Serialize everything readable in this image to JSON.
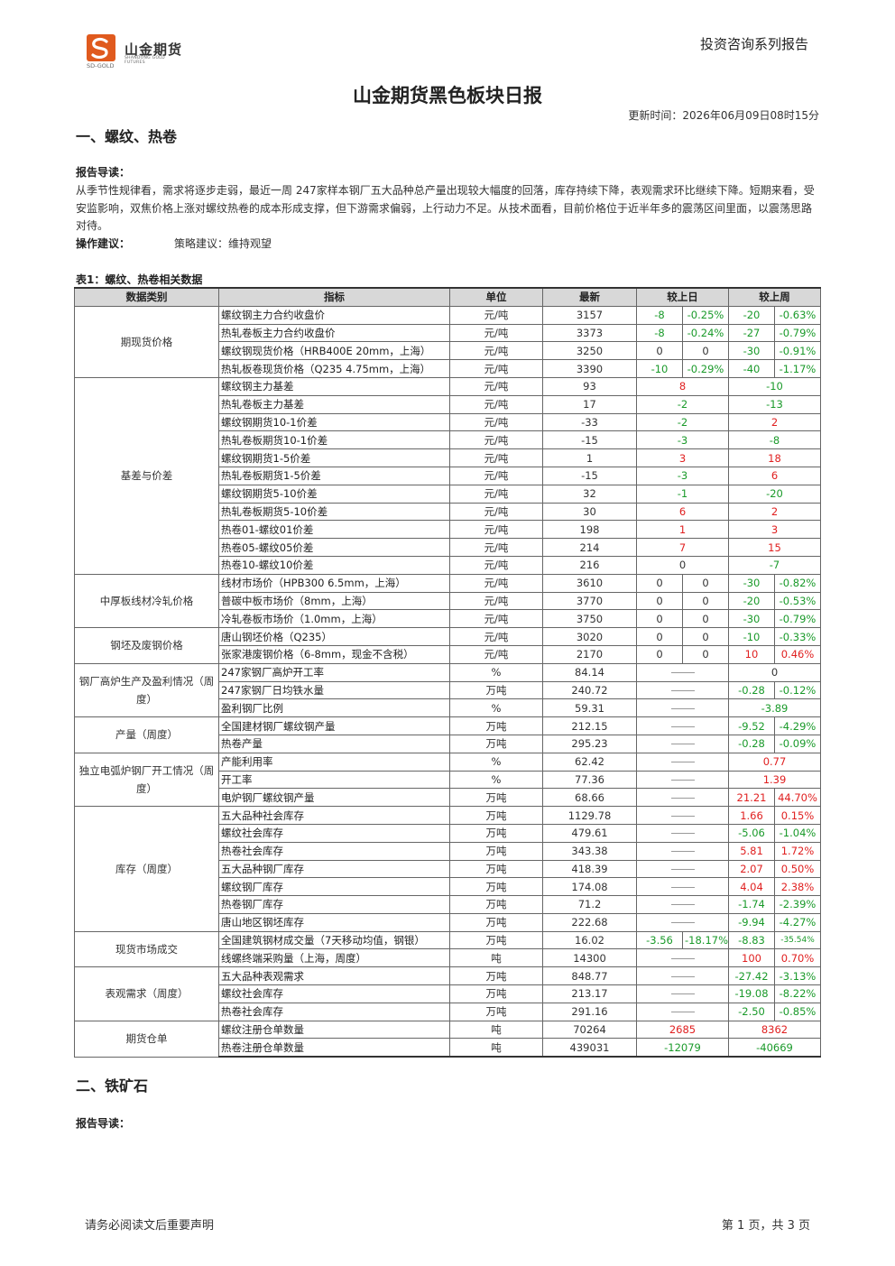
{
  "logo": {
    "name_cn": "山金期货",
    "name_en": "SHANDONG GOLD FUTURES",
    "abbr": "SD-GOLD",
    "brand_color": "#e05a1e"
  },
  "header": {
    "series": "投资咨询系列报告"
  },
  "title": "山金期货黑色板块日报",
  "update_time": "更新时间：2026年06月09日08时15分",
  "section1": {
    "title": "一、螺纹、热卷",
    "intro_label": "报告导读：",
    "intro": "从季节性规律看，需求将逐步走弱，最近一周 247家样本钢厂五大品种总产量出现较大幅度的回落，库存持续下降，表观需求环比继续下降。短期来看，受安监影响，双焦价格上涨对螺纹热卷的成本形成支撑，但下游需求偏弱，上行动力不足。从技术面看，目前价格位于近半年多的震荡区间里面，以震荡思路对待。",
    "advice_label": "操作建议：",
    "advice": "策略建议：维持观望",
    "table_caption": "表1：螺纹、热卷相关数据",
    "headers": [
      "数据类别",
      "指标",
      "单位",
      "最新",
      "较上日",
      "较上周"
    ],
    "groups": [
      {
        "category": "期现货价格",
        "rows": [
          {
            "name": "螺纹钢主力合约收盘价",
            "unit": "元/吨",
            "latest": "3157",
            "d1": "-8",
            "d1c": "green",
            "d2": "-0.25%",
            "d2c": "green",
            "w1": "-20",
            "w1c": "green",
            "w2": "-0.63%",
            "w2c": "green"
          },
          {
            "name": "热轧卷板主力合约收盘价",
            "unit": "元/吨",
            "latest": "3373",
            "d1": "-8",
            "d1c": "green",
            "d2": "-0.24%",
            "d2c": "green",
            "w1": "-27",
            "w1c": "green",
            "w2": "-0.79%",
            "w2c": "green"
          },
          {
            "name": "螺纹钢现货价格（HRB400E 20mm，上海）",
            "unit": "元/吨",
            "latest": "3250",
            "d1": "0",
            "d1c": "",
            "d2": "0",
            "d2c": "",
            "w1": "-30",
            "w1c": "green",
            "w2": "-0.91%",
            "w2c": "green"
          },
          {
            "name": "热轧板卷现货价格（Q235 4.75mm，上海）",
            "unit": "元/吨",
            "latest": "3390",
            "d1": "-10",
            "d1c": "green",
            "d2": "-0.29%",
            "d2c": "green",
            "w1": "-40",
            "w1c": "green",
            "w2": "-1.17%",
            "w2c": "green"
          }
        ]
      },
      {
        "category": "基差与价差",
        "rows": [
          {
            "name": "螺纹钢主力基差",
            "unit": "元/吨",
            "latest": "93",
            "dm": "8",
            "dmc": "red",
            "wm": "-10",
            "wmc": "green"
          },
          {
            "name": "热轧卷板主力基差",
            "unit": "元/吨",
            "latest": "17",
            "dm": "-2",
            "dmc": "green",
            "wm": "-13",
            "wmc": "green"
          },
          {
            "name": "螺纹钢期货10-1价差",
            "unit": "元/吨",
            "latest": "-33",
            "dm": "-2",
            "dmc": "green",
            "wm": "2",
            "wmc": "red"
          },
          {
            "name": "热轧卷板期货10-1价差",
            "unit": "元/吨",
            "latest": "-15",
            "dm": "-3",
            "dmc": "green",
            "wm": "-8",
            "wmc": "green"
          },
          {
            "name": "螺纹钢期货1-5价差",
            "unit": "元/吨",
            "latest": "1",
            "dm": "3",
            "dmc": "red",
            "wm": "18",
            "wmc": "red"
          },
          {
            "name": "热轧卷板期货1-5价差",
            "unit": "元/吨",
            "latest": "-15",
            "dm": "-3",
            "dmc": "green",
            "wm": "6",
            "wmc": "red"
          },
          {
            "name": "螺纹钢期货5-10价差",
            "unit": "元/吨",
            "latest": "32",
            "dm": "-1",
            "dmc": "green",
            "wm": "-20",
            "wmc": "green"
          },
          {
            "name": "热轧卷板期货5-10价差",
            "unit": "元/吨",
            "latest": "30",
            "dm": "6",
            "dmc": "red",
            "wm": "2",
            "wmc": "red"
          },
          {
            "name": "热卷01-螺纹01价差",
            "unit": "元/吨",
            "latest": "198",
            "dm": "1",
            "dmc": "red",
            "wm": "3",
            "wmc": "red"
          },
          {
            "name": "热卷05-螺纹05价差",
            "unit": "元/吨",
            "latest": "214",
            "dm": "7",
            "dmc": "red",
            "wm": "15",
            "wmc": "red"
          },
          {
            "name": "热卷10-螺纹10价差",
            "unit": "元/吨",
            "latest": "216",
            "dm": "0",
            "dmc": "",
            "wm": "-7",
            "wmc": "green"
          }
        ]
      },
      {
        "category": "中厚板线材冷轧价格",
        "rows": [
          {
            "name": "线材市场价（HPB300 6.5mm，上海）",
            "unit": "元/吨",
            "latest": "3610",
            "d1": "0",
            "d1c": "",
            "d2": "0",
            "d2c": "",
            "w1": "-30",
            "w1c": "green",
            "w2": "-0.82%",
            "w2c": "green"
          },
          {
            "name": "普碳中板市场价（8mm，上海）",
            "unit": "元/吨",
            "latest": "3770",
            "d1": "0",
            "d1c": "",
            "d2": "0",
            "d2c": "",
            "w1": "-20",
            "w1c": "green",
            "w2": "-0.53%",
            "w2c": "green"
          },
          {
            "name": "冷轧卷板市场价（1.0mm，上海）",
            "unit": "元/吨",
            "latest": "3750",
            "d1": "0",
            "d1c": "",
            "d2": "0",
            "d2c": "",
            "w1": "-30",
            "w1c": "green",
            "w2": "-0.79%",
            "w2c": "green"
          }
        ]
      },
      {
        "category": "钢坯及废钢价格",
        "rows": [
          {
            "name": "唐山钢坯价格（Q235）",
            "unit": "元/吨",
            "latest": "3020",
            "d1": "0",
            "d1c": "",
            "d2": "0",
            "d2c": "",
            "w1": "-10",
            "w1c": "green",
            "w2": "-0.33%",
            "w2c": "green"
          },
          {
            "name": "张家港废钢价格（6-8mm，现金不含税）",
            "unit": "元/吨",
            "latest": "2170",
            "d1": "0",
            "d1c": "",
            "d2": "0",
            "d2c": "",
            "w1": "10",
            "w1c": "red",
            "w2": "0.46%",
            "w2c": "red"
          }
        ]
      },
      {
        "category": "钢厂高炉生产及盈利情况（周度）",
        "rows": [
          {
            "name": "247家钢厂高炉开工率",
            "unit": "%",
            "latest": "84.14",
            "dash": true,
            "wm": "0",
            "wmc": ""
          },
          {
            "name": "247家钢厂日均铁水量",
            "unit": "万吨",
            "latest": "240.72",
            "dash": true,
            "w1": "-0.28",
            "w1c": "green",
            "w2": "-0.12%",
            "w2c": "green"
          },
          {
            "name": "盈利钢厂比例",
            "unit": "%",
            "latest": "59.31",
            "dash": true,
            "wm": "-3.89",
            "wmc": "green"
          }
        ]
      },
      {
        "category": "产量（周度）",
        "rows": [
          {
            "name": "全国建材钢厂螺纹钢产量",
            "unit": "万吨",
            "latest": "212.15",
            "dash": true,
            "w1": "-9.52",
            "w1c": "green",
            "w2": "-4.29%",
            "w2c": "green"
          },
          {
            "name": "热卷产量",
            "unit": "万吨",
            "latest": "295.23",
            "dash": true,
            "w1": "-0.28",
            "w1c": "green",
            "w2": "-0.09%",
            "w2c": "green"
          }
        ]
      },
      {
        "category": "独立电弧炉钢厂开工情况（周度）",
        "rows": [
          {
            "name": "产能利用率",
            "unit": "%",
            "latest": "62.42",
            "dash": true,
            "wm": "0.77",
            "wmc": "red"
          },
          {
            "name": "开工率",
            "unit": "%",
            "latest": "77.36",
            "dash": true,
            "wm": "1.39",
            "wmc": "red"
          },
          {
            "name": "电炉钢厂螺纹钢产量",
            "unit": "万吨",
            "latest": "68.66",
            "dash": true,
            "w1": "21.21",
            "w1c": "red",
            "w2": "44.70%",
            "w2c": "red"
          }
        ]
      },
      {
        "category": "库存（周度）",
        "rows": [
          {
            "name": "五大品种社会库存",
            "unit": "万吨",
            "latest": "1129.78",
            "dash": true,
            "w1": "1.66",
            "w1c": "red",
            "w2": "0.15%",
            "w2c": "red"
          },
          {
            "name": "螺纹社会库存",
            "unit": "万吨",
            "latest": "479.61",
            "dash": true,
            "w1": "-5.06",
            "w1c": "green",
            "w2": "-1.04%",
            "w2c": "green"
          },
          {
            "name": "热卷社会库存",
            "unit": "万吨",
            "latest": "343.38",
            "dash": true,
            "w1": "5.81",
            "w1c": "red",
            "w2": "1.72%",
            "w2c": "red"
          },
          {
            "name": "五大品种钢厂库存",
            "unit": "万吨",
            "latest": "418.39",
            "dash": true,
            "w1": "2.07",
            "w1c": "red",
            "w2": "0.50%",
            "w2c": "red"
          },
          {
            "name": "螺纹钢厂库存",
            "unit": "万吨",
            "latest": "174.08",
            "dash": true,
            "w1": "4.04",
            "w1c": "red",
            "w2": "2.38%",
            "w2c": "red"
          },
          {
            "name": "热卷钢厂库存",
            "unit": "万吨",
            "latest": "71.2",
            "dash": true,
            "w1": "-1.74",
            "w1c": "green",
            "w2": "-2.39%",
            "w2c": "green"
          },
          {
            "name": "唐山地区钢坯库存",
            "unit": "万吨",
            "latest": "222.68",
            "dash": true,
            "w1": "-9.94",
            "w1c": "green",
            "w2": "-4.27%",
            "w2c": "green"
          }
        ]
      },
      {
        "category": "现货市场成交",
        "rows": [
          {
            "name": "全国建筑钢材成交量（7天移动均值，钢银）",
            "unit": "万吨",
            "latest": "16.02",
            "d1": "-3.56",
            "d1c": "green",
            "d2": "-18.17%",
            "d2c": "green",
            "w1": "-8.83",
            "w1c": "green",
            "w2": "-35.54%",
            "w2c": "green",
            "w2small": true
          },
          {
            "name": "线螺终端采购量（上海，周度）",
            "unit": "吨",
            "latest": "14300",
            "dash": true,
            "w1": "100",
            "w1c": "red",
            "w2": "0.70%",
            "w2c": "red"
          }
        ]
      },
      {
        "category": "表观需求（周度）",
        "rows": [
          {
            "name": "五大品种表观需求",
            "unit": "万吨",
            "latest": "848.77",
            "dash": true,
            "w1": "-27.42",
            "w1c": "green",
            "w2": "-3.13%",
            "w2c": "green"
          },
          {
            "name": "螺纹社会库存",
            "unit": "万吨",
            "latest": "213.17",
            "dash": true,
            "w1": "-19.08",
            "w1c": "green",
            "w2": "-8.22%",
            "w2c": "green"
          },
          {
            "name": "热卷社会库存",
            "unit": "万吨",
            "latest": "291.16",
            "dash": true,
            "w1": "-2.50",
            "w1c": "green",
            "w2": "-0.85%",
            "w2c": "green"
          }
        ]
      },
      {
        "category": "期货仓单",
        "rows": [
          {
            "name": "螺纹注册仓单数量",
            "unit": "吨",
            "latest": "70264",
            "dm": "2685",
            "dmc": "red",
            "wm": "8362",
            "wmc": "red"
          },
          {
            "name": "热卷注册仓单数量",
            "unit": "吨",
            "latest": "439031",
            "dm": "-12079",
            "dmc": "green",
            "wm": "-40669",
            "wmc": "green"
          }
        ]
      }
    ]
  },
  "section2": {
    "title": "二、铁矿石",
    "intro_label": "报告导读："
  },
  "footer": {
    "disclaimer": "请务必阅读文后重要声明",
    "page": "第 1 页，共 3 页"
  }
}
